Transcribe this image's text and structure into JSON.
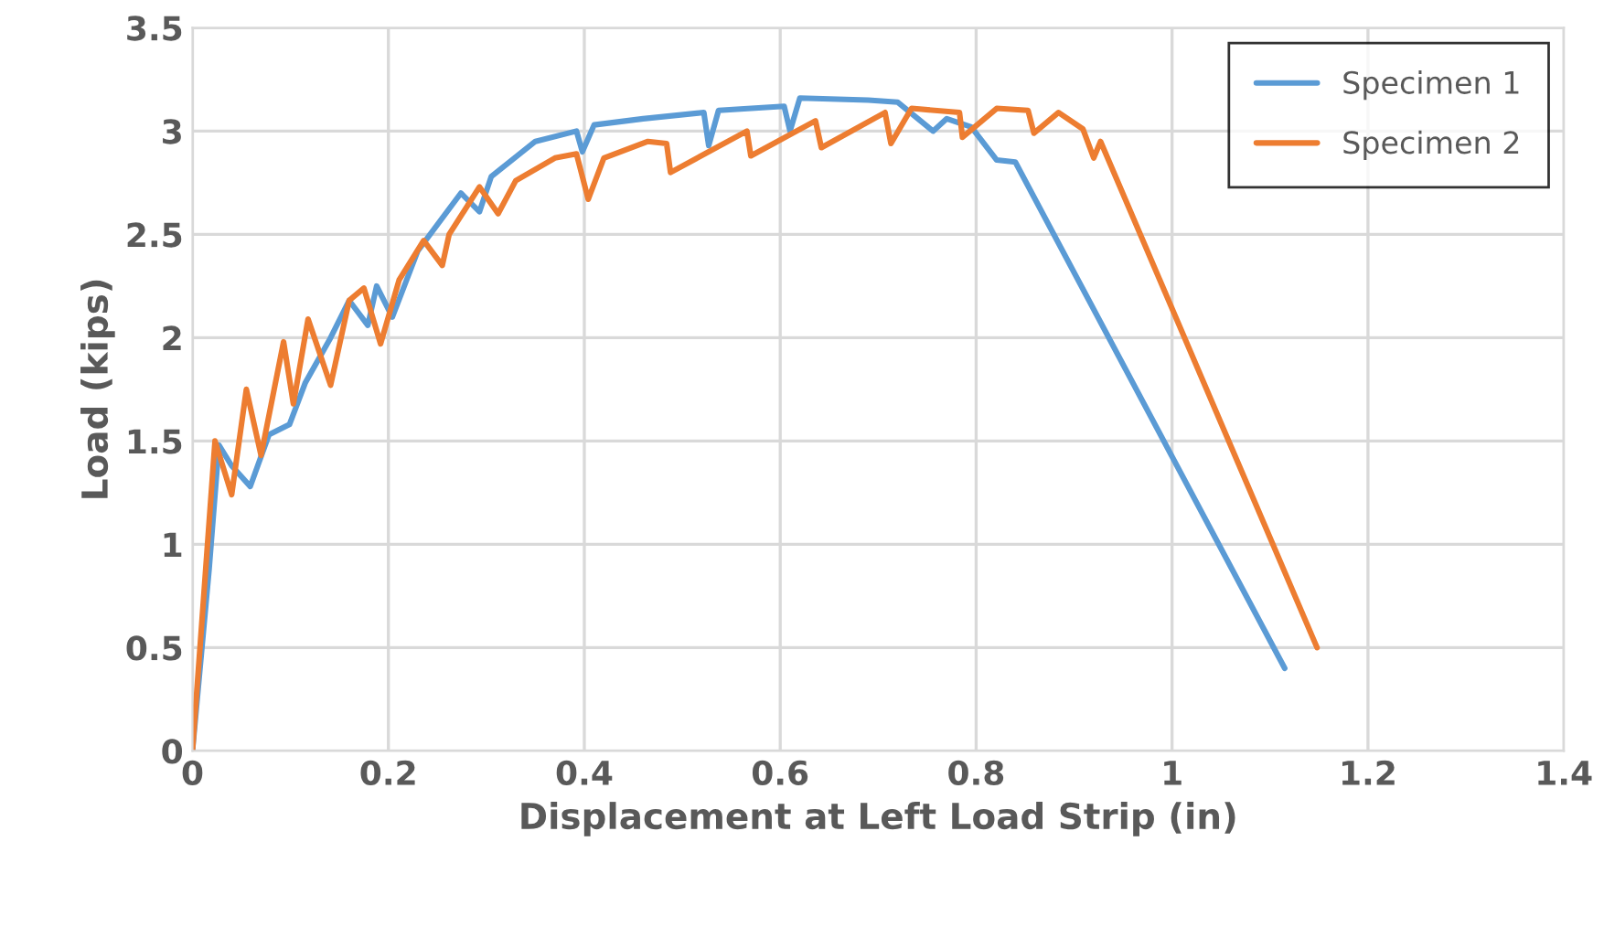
{
  "chart_data": {
    "type": "line",
    "xlabel": "Displacement at Left Load Strip (in)",
    "ylabel": "Load (kips)",
    "xlim": [
      0,
      1.4
    ],
    "xticks": [
      0,
      0.2,
      0.4,
      0.6,
      0.8,
      1,
      1.2,
      1.4
    ],
    "ylim": [
      0,
      3.5
    ],
    "yticks": [
      0,
      0.5,
      1,
      1.5,
      2,
      2.5,
      3,
      3.5
    ],
    "grid": true,
    "legend": "top right",
    "marker": "none",
    "line_style": "solid",
    "series": [
      {
        "name": "Specimen 1",
        "color": "#5b9bd5",
        "x": [
          0,
          0.017,
          0.027,
          0.04,
          0.059,
          0.078,
          0.099,
          0.115,
          0.141,
          0.16,
          0.179,
          0.188,
          0.204,
          0.23,
          0.274,
          0.293,
          0.305,
          0.35,
          0.392,
          0.398,
          0.41,
          0.46,
          0.522,
          0.527,
          0.537,
          0.604,
          0.61,
          0.62,
          0.69,
          0.72,
          0.756,
          0.77,
          0.795,
          0.821,
          0.84,
          1.115
        ],
        "values": [
          0,
          0.88,
          1.48,
          1.38,
          1.28,
          1.53,
          1.58,
          1.78,
          2.0,
          2.18,
          2.06,
          2.25,
          2.1,
          2.42,
          2.7,
          2.61,
          2.78,
          2.95,
          3.0,
          2.9,
          3.03,
          3.06,
          3.09,
          2.93,
          3.1,
          3.12,
          3.0,
          3.16,
          3.15,
          3.14,
          3.0,
          3.06,
          3.02,
          2.86,
          2.85,
          0.4
        ]
      },
      {
        "name": "Specimen 2",
        "color": "#ed7d31",
        "x": [
          0,
          0.023,
          0.04,
          0.055,
          0.07,
          0.093,
          0.103,
          0.118,
          0.141,
          0.16,
          0.175,
          0.192,
          0.211,
          0.236,
          0.255,
          0.262,
          0.293,
          0.312,
          0.33,
          0.37,
          0.392,
          0.404,
          0.42,
          0.465,
          0.484,
          0.488,
          0.566,
          0.57,
          0.636,
          0.642,
          0.707,
          0.713,
          0.734,
          0.783,
          0.786,
          0.821,
          0.853,
          0.859,
          0.884,
          0.909,
          0.92,
          0.927,
          1.148
        ],
        "values": [
          0,
          1.5,
          1.24,
          1.75,
          1.43,
          1.98,
          1.68,
          2.09,
          1.77,
          2.18,
          2.24,
          1.97,
          2.28,
          2.47,
          2.35,
          2.5,
          2.73,
          2.6,
          2.76,
          2.87,
          2.89,
          2.67,
          2.87,
          2.95,
          2.94,
          2.8,
          3.0,
          2.88,
          3.05,
          2.92,
          3.09,
          2.94,
          3.11,
          3.09,
          2.97,
          3.11,
          3.1,
          2.99,
          3.09,
          3.01,
          2.87,
          2.95,
          0.5
        ]
      }
    ]
  }
}
